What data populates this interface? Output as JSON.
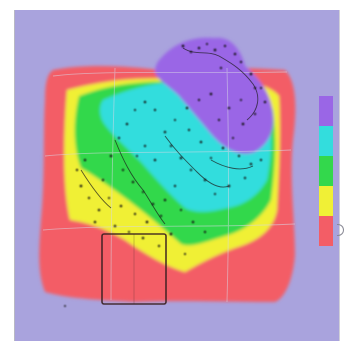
{
  "viewer": {
    "background": "#a9a3dd"
  },
  "legend": {
    "bands": [
      {
        "color": "#9a66e6"
      },
      {
        "color": "#33dddd"
      },
      {
        "color": "#33d84c"
      },
      {
        "color": "#f0f036"
      },
      {
        "color": "#f35d66"
      }
    ]
  },
  "surface": {
    "band_colors": [
      "#f35d66",
      "#f0f036",
      "#33d84c",
      "#33dddd",
      "#9a66e6"
    ],
    "grid_color": "#d8d8e6",
    "selection_box_color": "#3a2020"
  },
  "icons": {
    "edge_handle": "edge-handle-icon"
  }
}
